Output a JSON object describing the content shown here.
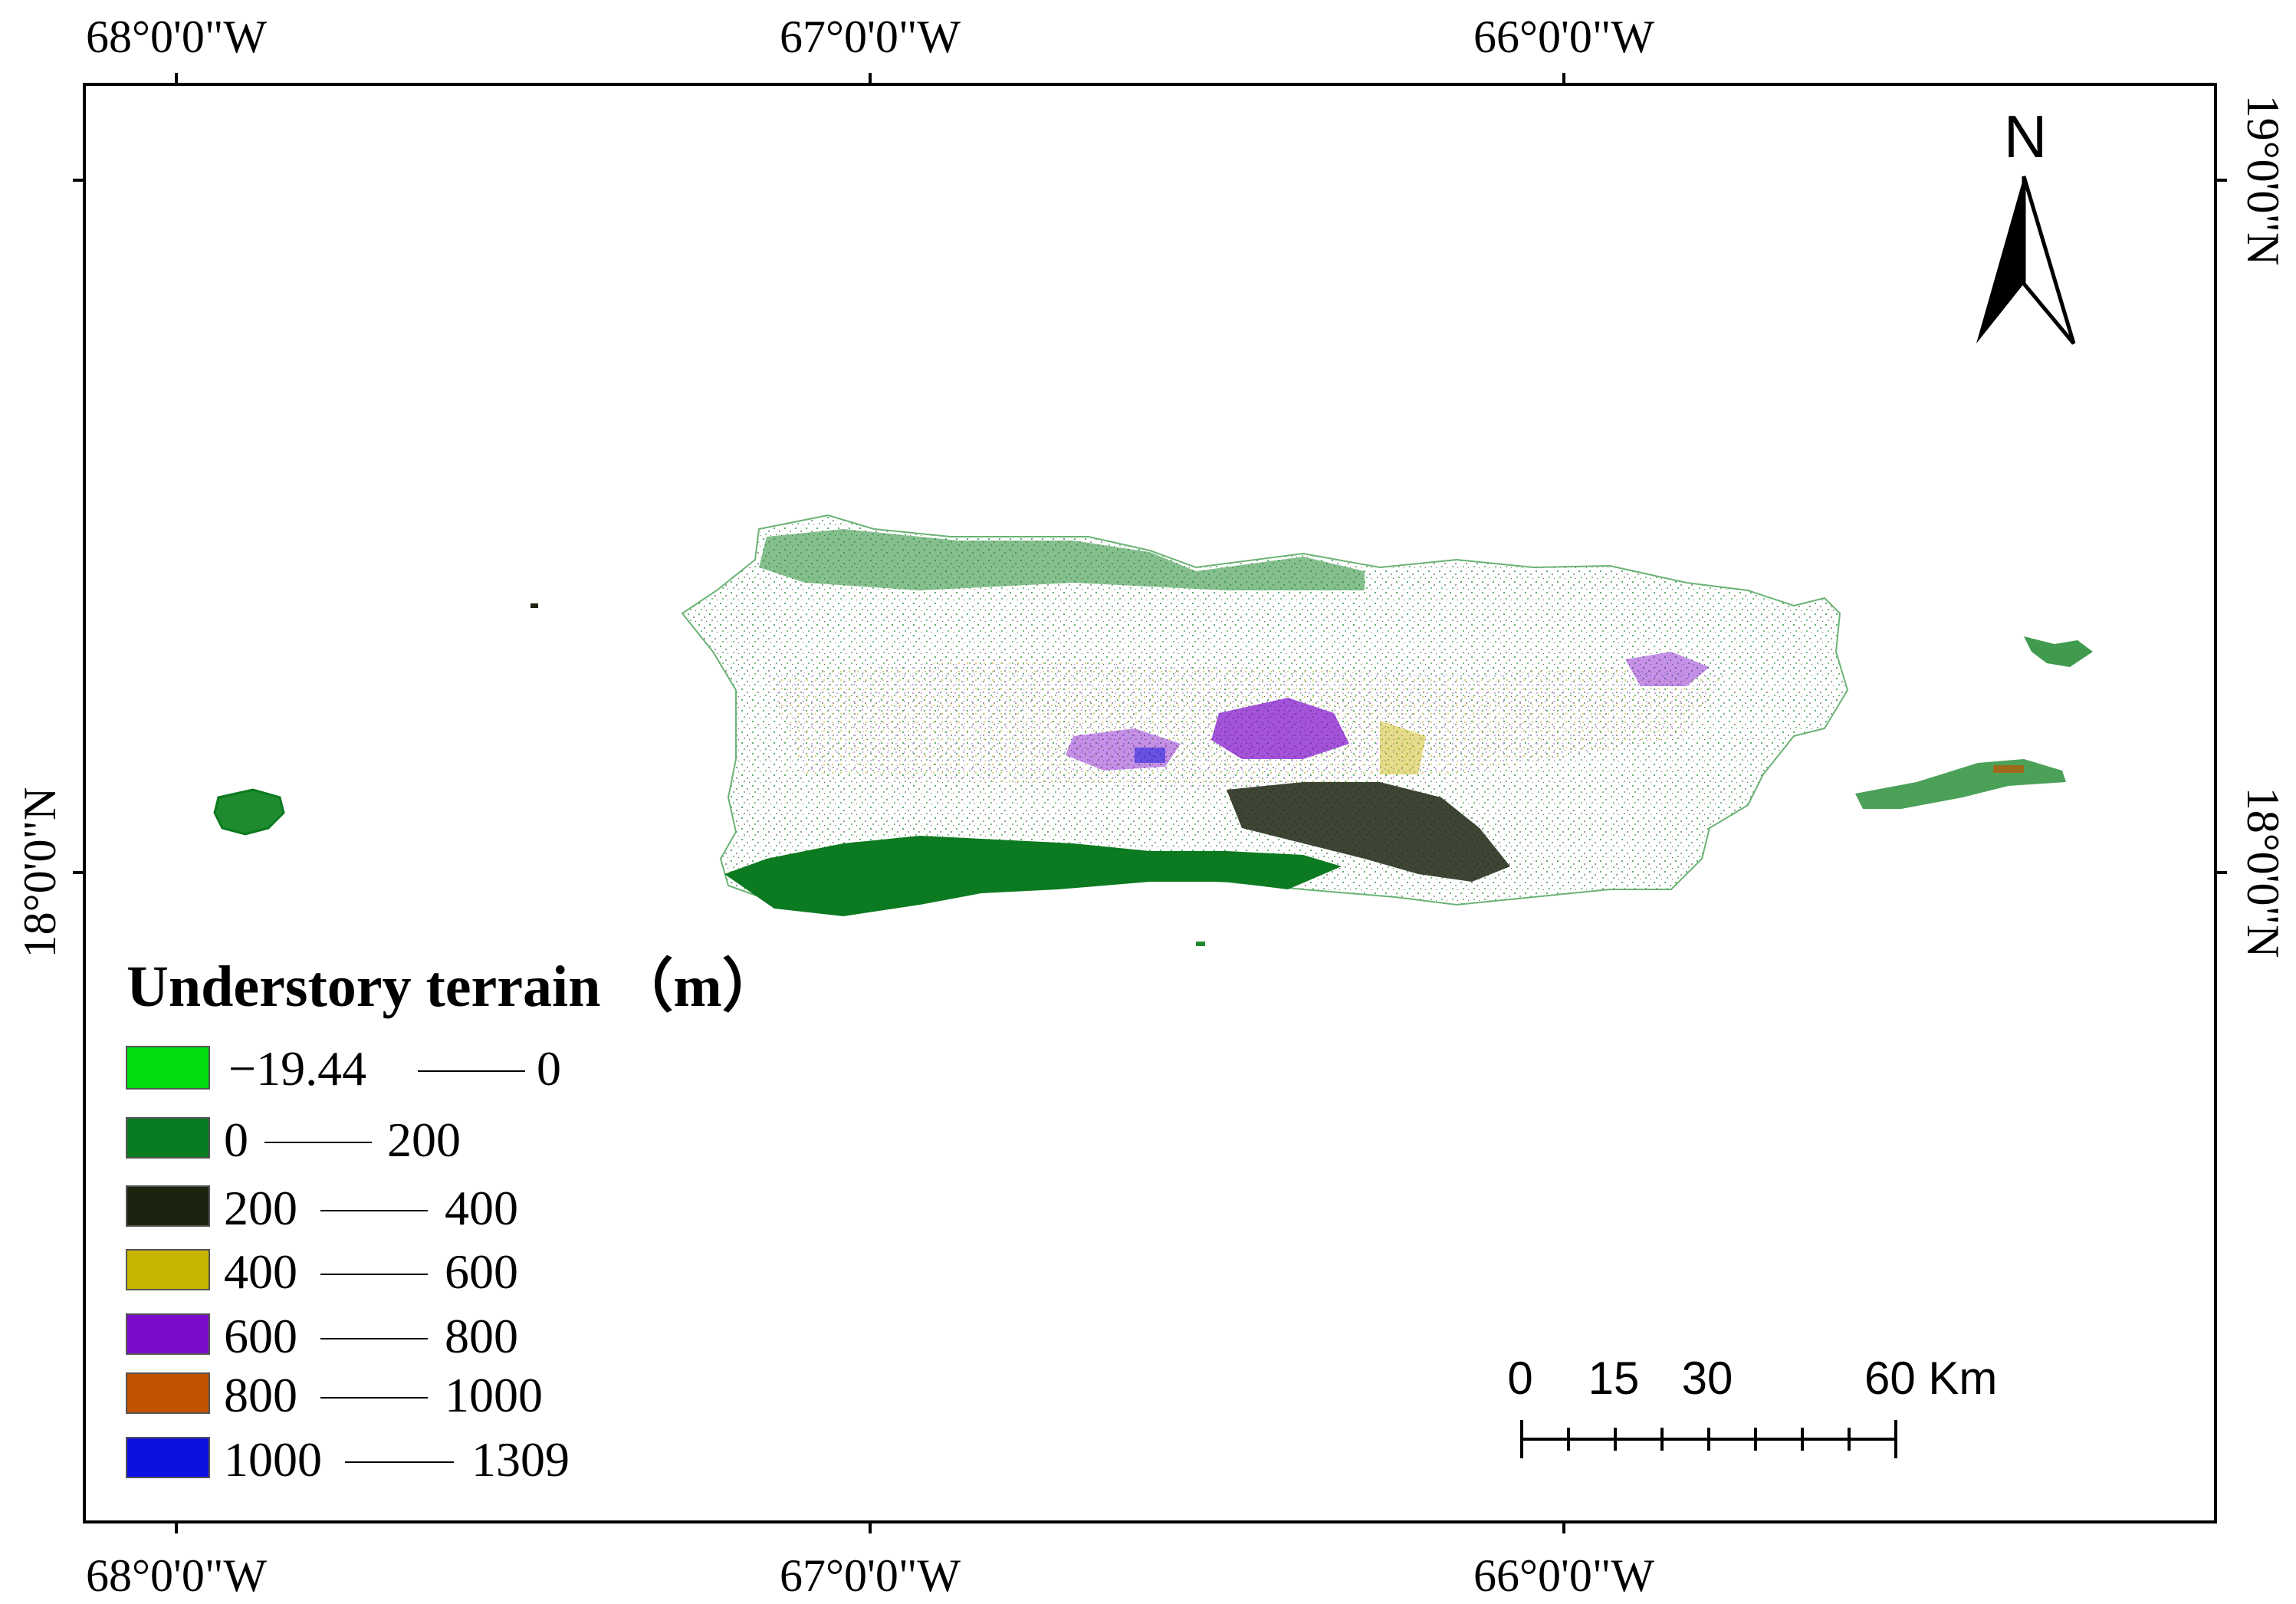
{
  "axes": {
    "top": [
      "68°0'0\"W",
      "67°0'0\"W",
      "66°0'0\"W"
    ],
    "bottom": [
      "68°0'0\"W",
      "67°0'0\"W",
      "66°0'0\"W"
    ],
    "left": [
      "18°0'0\"N"
    ],
    "right": [
      "19°0'0\"N",
      "18°0'0\"N"
    ]
  },
  "north_arrow": {
    "label": "N"
  },
  "legend": {
    "title": "Understory terrain （m）",
    "items": [
      {
        "from": "−19.44",
        "to": "0",
        "color": "#00dd11"
      },
      {
        "from": "0",
        "to": "200",
        "color": "#087a20"
      },
      {
        "from": "200",
        "to": "400",
        "color": "#1c2410"
      },
      {
        "from": "400",
        "to": "600",
        "color": "#c7b400"
      },
      {
        "from": "600",
        "to": "800",
        "color": "#7c0cc9"
      },
      {
        "from": "800",
        "to": "1000",
        "color": "#c05200"
      },
      {
        "from": "1000",
        "to": "1309",
        "color": "#0c10e0"
      }
    ]
  },
  "scale_bar": {
    "labels": [
      "0",
      "15",
      "30",
      "60 Km"
    ]
  }
}
